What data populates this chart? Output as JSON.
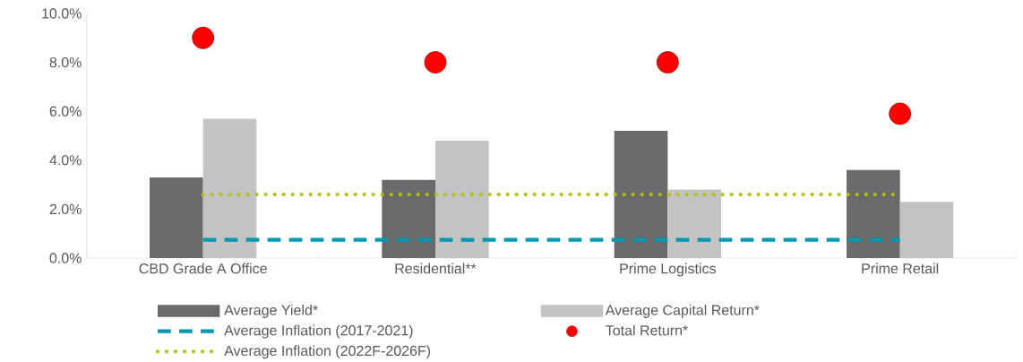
{
  "chart_data": {
    "type": "bar",
    "categories": [
      "CBD Grade A Office",
      "Residential**",
      "Prime Logistics",
      "Prime Retail"
    ],
    "ylim": [
      0,
      10
    ],
    "yticks": [
      {
        "value": 0,
        "label": "0.0%"
      },
      {
        "value": 2,
        "label": "2.0%"
      },
      {
        "value": 4,
        "label": "4.0%"
      },
      {
        "value": 6,
        "label": "6.0%"
      },
      {
        "value": 8,
        "label": "8.0%"
      },
      {
        "value": 10,
        "label": "10.0%"
      }
    ],
    "legend": "bottom",
    "grid": false,
    "series": [
      {
        "name": "Average Yield*",
        "color": "#696a69",
        "values": [
          3.3,
          3.2,
          5.2,
          3.6
        ]
      },
      {
        "name": "Average Capital Return*",
        "color": "#c2c3c2",
        "values": [
          5.7,
          4.8,
          2.8,
          2.3
        ]
      },
      {
        "name": "Average Inflation (2017-2021)",
        "type": "line",
        "line_style": "dashed",
        "marker": "none",
        "color": "#0097b2",
        "values": [
          0.75,
          0.75,
          0.75,
          0.75
        ]
      },
      {
        "name": "Total Return*",
        "type": "scatter",
        "marker": "circle",
        "color": "#ff0000",
        "values": [
          9.0,
          8.0,
          8.0,
          5.9
        ]
      },
      {
        "name": "Average Inflation (2022F-2026F)",
        "type": "line",
        "line_style": "dotted",
        "marker": "none",
        "color": "#b5c200",
        "values": [
          2.6,
          2.6,
          2.6,
          2.6
        ]
      }
    ]
  }
}
